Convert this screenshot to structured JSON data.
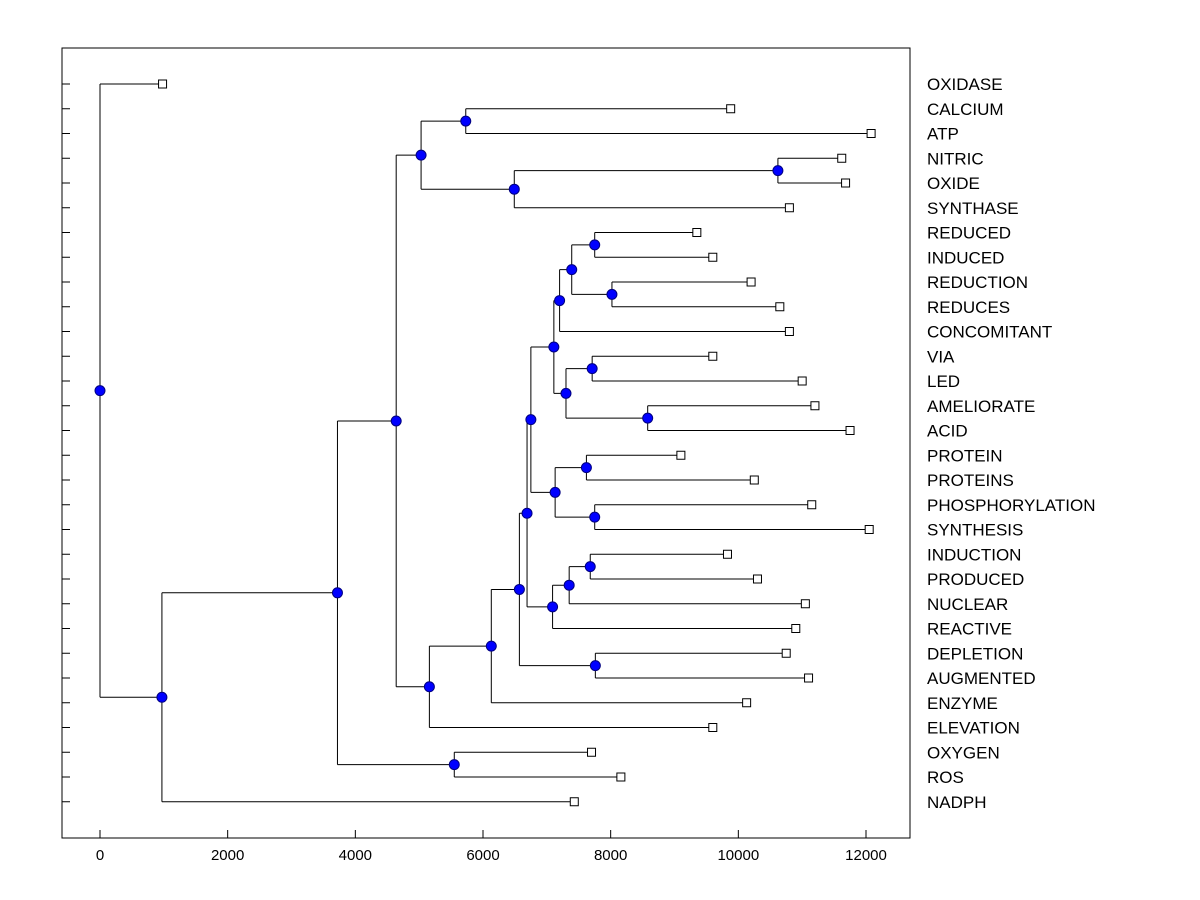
{
  "chart_data": {
    "type": "dendrogram",
    "title": "",
    "xlabel": "",
    "ylabel": "",
    "xlim": [
      -600,
      12700
    ],
    "xticks": [
      0,
      2000,
      4000,
      6000,
      8000,
      10000,
      12000
    ],
    "xtick_labels": [
      "0",
      "2000",
      "4000",
      "6000",
      "8000",
      "10000",
      "12000"
    ],
    "grid": false,
    "legend": "none",
    "leaf_labels": [
      "OXIDASE",
      "CALCIUM",
      "ATP",
      "NITRIC",
      "OXIDE",
      "SYNTHASE",
      "REDUCED",
      "INDUCED",
      "REDUCTION",
      "REDUCES",
      "CONCOMITANT",
      "VIA",
      "LED",
      "AMELIORATE",
      "ACID",
      "PROTEIN",
      "PROTEINS",
      "PHOSPHORYLATION",
      "SYNTHESIS",
      "INDUCTION",
      "PRODUCED",
      "NUCLEAR",
      "REACTIVE",
      "DEPLETION",
      "AUGMENTED",
      "ENZYME",
      "ELEVATION",
      "OXYGEN",
      "ROS",
      "NADPH"
    ],
    "leaf_values": [
      980,
      9880,
      12080,
      11620,
      11680,
      10800,
      9350,
      9600,
      10200,
      10650,
      10800,
      9600,
      11000,
      11200,
      11750,
      9100,
      10250,
      11150,
      12050,
      9830,
      10300,
      11050,
      10900,
      10750,
      11100,
      10130,
      9600,
      7700,
      8160,
      7430
    ],
    "merges": [
      {
        "id": "n_calcium_atp",
        "value": 5730,
        "children": [
          "leaf:CALCIUM",
          "leaf:ATP"
        ]
      },
      {
        "id": "n_nitric_oxide",
        "value": 10620,
        "children": [
          "leaf:NITRIC",
          "leaf:OXIDE"
        ]
      },
      {
        "id": "n_no_synthase",
        "value": 6490,
        "children": [
          "n_nitric_oxide",
          "leaf:SYNTHASE"
        ]
      },
      {
        "id": "n_top_group",
        "value": 5030,
        "children": [
          "n_calcium_atp",
          "n_no_synthase"
        ]
      },
      {
        "id": "n_reduced_induced",
        "value": 7750,
        "children": [
          "leaf:REDUCED",
          "leaf:INDUCED"
        ]
      },
      {
        "id": "n_reduction_reduces",
        "value": 8020,
        "children": [
          "leaf:REDUCTION",
          "leaf:REDUCES"
        ]
      },
      {
        "id": "n_red_group",
        "value": 7390,
        "children": [
          "n_reduced_induced",
          "n_reduction_reduces"
        ]
      },
      {
        "id": "n_red_concomitant",
        "value": 7200,
        "children": [
          "n_red_group",
          "leaf:CONCOMITANT"
        ]
      },
      {
        "id": "n_via_led",
        "value": 7710,
        "children": [
          "leaf:VIA",
          "leaf:LED"
        ]
      },
      {
        "id": "n_ameliorate_acid",
        "value": 8580,
        "children": [
          "leaf:AMELIORATE",
          "leaf:ACID"
        ]
      },
      {
        "id": "n_via_acid",
        "value": 7300,
        "children": [
          "n_via_led",
          "n_ameliorate_acid"
        ]
      },
      {
        "id": "n_reduced_to_acid",
        "value": 7110,
        "children": [
          "n_red_concomitant",
          "n_via_acid"
        ]
      },
      {
        "id": "n_protein_proteins",
        "value": 7620,
        "children": [
          "leaf:PROTEIN",
          "leaf:PROTEINS"
        ]
      },
      {
        "id": "n_phos_synthesis",
        "value": 7750,
        "children": [
          "leaf:PHOSPHORYLATION",
          "leaf:SYNTHESIS"
        ]
      },
      {
        "id": "n_protein_group",
        "value": 7130,
        "children": [
          "n_protein_proteins",
          "n_phos_synthesis"
        ]
      },
      {
        "id": "n_reduced_to_synthesis",
        "value": 6750,
        "children": [
          "n_reduced_to_acid",
          "n_protein_group"
        ]
      },
      {
        "id": "n_induction_produced",
        "value": 7680,
        "children": [
          "leaf:INDUCTION",
          "leaf:PRODUCED"
        ]
      },
      {
        "id": "n_induction_nuclear",
        "value": 7350,
        "children": [
          "n_induction_produced",
          "leaf:NUCLEAR"
        ]
      },
      {
        "id": "n_induction_reactive",
        "value": 7090,
        "children": [
          "n_induction_nuclear",
          "leaf:REACTIVE"
        ]
      },
      {
        "id": "n_mid_group",
        "value": 6690,
        "children": [
          "n_reduced_to_synthesis",
          "n_induction_reactive"
        ]
      },
      {
        "id": "n_depletion_augmented",
        "value": 7760,
        "children": [
          "leaf:DEPLETION",
          "leaf:AUGMENTED"
        ]
      },
      {
        "id": "n_mid_depletion",
        "value": 6570,
        "children": [
          "n_mid_group",
          "n_depletion_augmented"
        ]
      },
      {
        "id": "n_mid_enzyme",
        "value": 6130,
        "children": [
          "n_mid_depletion",
          "leaf:ENZYME"
        ]
      },
      {
        "id": "n_mid_elevation",
        "value": 5160,
        "children": [
          "n_mid_enzyme",
          "leaf:ELEVATION"
        ]
      },
      {
        "id": "n_upper_main",
        "value": 4640,
        "children": [
          "n_top_group",
          "n_mid_elevation"
        ]
      },
      {
        "id": "n_oxygen_ros",
        "value": 5550,
        "children": [
          "leaf:OXYGEN",
          "leaf:ROS"
        ]
      },
      {
        "id": "n_main_oxygen",
        "value": 3720,
        "children": [
          "n_upper_main",
          "n_oxygen_ros"
        ]
      },
      {
        "id": "n_main_nadph",
        "value": 970,
        "children": [
          "n_main_oxygen",
          "leaf:NADPH"
        ]
      },
      {
        "id": "n_root",
        "value": 0,
        "children": [
          "leaf:OXIDASE",
          "n_main_nadph"
        ]
      }
    ],
    "colors": {
      "node_fill": "#0000ff",
      "node_stroke": "#000080",
      "line": "#000000",
      "leaf_fill": "#ffffff",
      "frame": "#000000",
      "background": "#ffffff"
    }
  }
}
